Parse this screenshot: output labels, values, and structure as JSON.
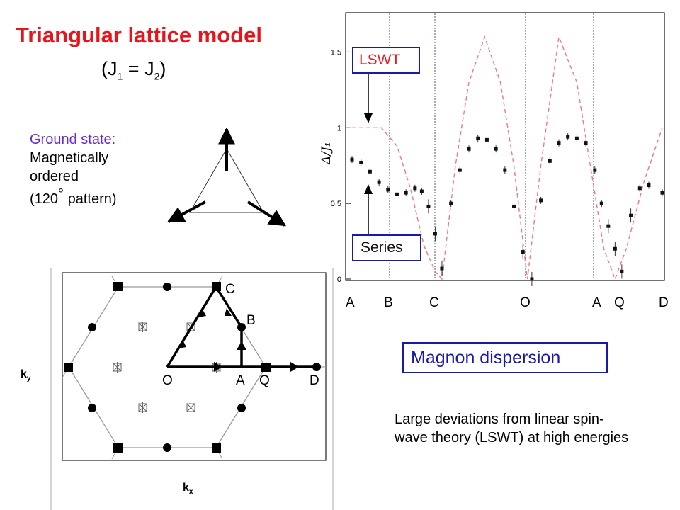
{
  "title": "Triangular lattice model",
  "subtitle": {
    "prefix": "(J",
    "sub1": "1",
    "mid": " = J",
    "sub2": "2",
    "suffix": ")"
  },
  "ground_state": {
    "heading": "Ground state:",
    "line1": "Magnetically",
    "line2": "ordered",
    "line3_pre": "(120",
    "deg": "°",
    "line3_post": " pattern)"
  },
  "labels": {
    "lswt": "LSWT",
    "series": "Series",
    "magnon": "Magnon dispersion"
  },
  "deviation_text": "Large deviations from linear spin-wave theory (LSWT) at high energies",
  "bz_labels": {
    "C": "C",
    "B": "B",
    "O": "O",
    "A": "A",
    "Q": "Q",
    "D": "D",
    "ky": "k",
    "ky_sub": "y",
    "kx": "k",
    "kx_sub": "x"
  },
  "colors": {
    "title": "#e8141b",
    "ground_head": "#6a2bd0",
    "box_border": "#1a1aa8",
    "lswt_curve": "#ef7a80"
  },
  "chart_data": {
    "type": "line",
    "ylabel": "Δ/J₁",
    "ylim": [
      0,
      1.75
    ],
    "yticks": [
      0,
      0.5,
      1,
      1.5
    ],
    "path_labels": [
      "A",
      "B",
      "C",
      "O",
      "A",
      "Q",
      "D"
    ],
    "series": [
      {
        "name": "LSWT",
        "style": "dashed",
        "x": [
          0,
          0.65,
          1.0,
          1.3,
          1.6,
          1.85,
          2.0,
          2.3,
          2.6,
          2.95,
          3.3,
          3.6,
          3.9,
          4.2,
          4.6,
          5.0,
          5.3,
          5.6,
          5.85,
          6.1,
          6.5,
          6.9
        ],
        "y": [
          1.0,
          1.0,
          0.88,
          0.6,
          0.22,
          0.05,
          0.0,
          0.75,
          1.3,
          1.6,
          1.3,
          0.75,
          0.0,
          0.75,
          1.6,
          1.3,
          0.75,
          0.2,
          0.0,
          0.2,
          0.65,
          1.0
        ]
      },
      {
        "name": "Series",
        "style": "markers",
        "x": [
          0,
          0.2,
          0.4,
          0.6,
          0.8,
          1.0,
          1.2,
          1.4,
          1.55,
          1.7,
          1.85,
          2.0,
          2.2,
          2.4,
          2.6,
          2.8,
          3.0,
          3.2,
          3.4,
          3.6,
          3.8,
          4.0,
          4.2,
          4.4,
          4.6,
          4.8,
          5.0,
          5.2,
          5.4,
          5.55,
          5.7,
          5.85,
          6.0,
          6.2,
          6.4,
          6.6,
          6.9
        ],
        "y": [
          0.79,
          0.77,
          0.71,
          0.64,
          0.59,
          0.56,
          0.57,
          0.6,
          0.58,
          0.48,
          0.3,
          0.07,
          0.5,
          0.72,
          0.86,
          0.93,
          0.92,
          0.86,
          0.72,
          0.48,
          0.18,
          0.0,
          0.52,
          0.78,
          0.9,
          0.94,
          0.93,
          0.9,
          0.72,
          0.5,
          0.35,
          0.2,
          0.05,
          0.42,
          0.6,
          0.62,
          0.57
        ]
      }
    ]
  }
}
